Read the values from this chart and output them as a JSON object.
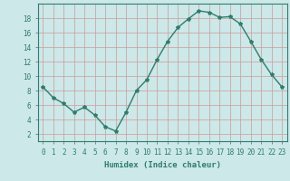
{
  "x": [
    0,
    1,
    2,
    3,
    4,
    5,
    6,
    7,
    8,
    9,
    10,
    11,
    12,
    13,
    14,
    15,
    16,
    17,
    18,
    19,
    20,
    21,
    22,
    23
  ],
  "y": [
    8.5,
    7.0,
    6.2,
    5.0,
    5.7,
    4.6,
    3.0,
    2.4,
    5.0,
    8.0,
    9.5,
    12.3,
    14.8,
    16.7,
    17.9,
    19.0,
    18.8,
    18.1,
    18.2,
    17.2,
    14.8,
    12.3,
    10.2,
    8.5
  ],
  "line_color": "#2e7d6e",
  "marker": "*",
  "marker_size": 3,
  "bg_color": "#cce8e8",
  "grid_color": "#cc9999",
  "xlabel": "Humidex (Indice chaleur)",
  "ylim": [
    1,
    20
  ],
  "yticks": [
    2,
    4,
    6,
    8,
    10,
    12,
    14,
    16,
    18
  ],
  "xticks": [
    0,
    1,
    2,
    3,
    4,
    5,
    6,
    7,
    8,
    9,
    10,
    11,
    12,
    13,
    14,
    15,
    16,
    17,
    18,
    19,
    20,
    21,
    22,
    23
  ],
  "tick_label_size": 5.5,
  "xlabel_size": 6.5,
  "line_width": 1.0
}
